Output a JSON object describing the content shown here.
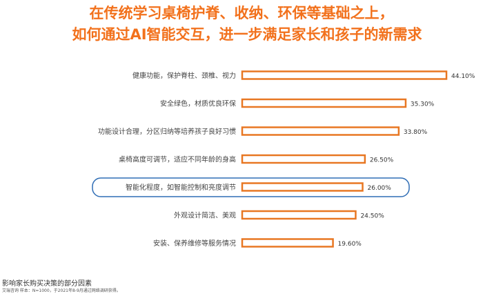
{
  "title_line1": "在传统学习桌椅护脊、收纳、环保等基础之上，",
  "title_line2": "如何通过AI智能交互，进一步满足家长和孩子的新需求",
  "chart_data": {
    "type": "bar",
    "orientation": "horizontal",
    "categories": [
      "健康功能，保护脊柱、颈椎、视力",
      "安全绿色，材质优良环保",
      "功能设计合理，分区归纳等培养孩子良好习惯",
      "桌椅高度可调节，适应不同年龄的身高",
      "智能化程度，如智能控制和亮度调节",
      "外观设计简洁、美观",
      "安装、保养维修等服务情况"
    ],
    "values": [
      44.1,
      35.3,
      33.8,
      26.5,
      26.0,
      24.5,
      19.6
    ],
    "value_labels": [
      "44.10%",
      "35.30%",
      "33.80%",
      "26.50%",
      "26.00%",
      "24.50%",
      "19.60%"
    ],
    "highlighted_index": 4,
    "bar_color": "#e87722",
    "highlight_color": "#2f6db5"
  },
  "footer": {
    "title": "影响家长购买决策的部分因素",
    "note": "艾瑞咨询 样本：N=1000，于2021年8-9月通过网络调研获得。"
  }
}
